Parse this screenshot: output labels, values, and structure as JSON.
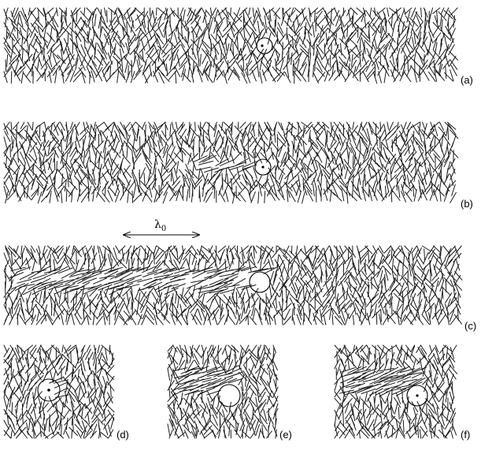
{
  "figure": {
    "panel_labels": {
      "a": "(a)",
      "b": "(b)",
      "c": "(c)",
      "d": "(d)",
      "e": "(e)",
      "f": "(f)"
    },
    "wavelength_label": "λ",
    "wavelength_subscript": "0"
  }
}
